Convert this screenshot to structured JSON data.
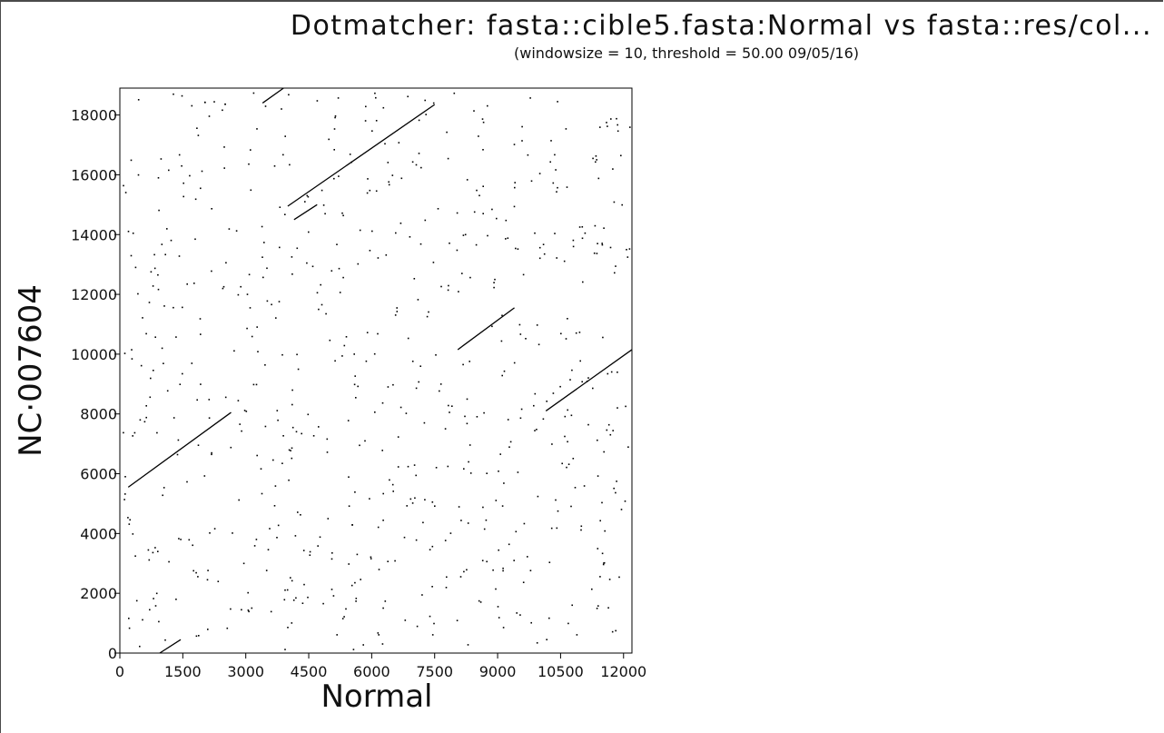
{
  "chart_data": {
    "type": "scatter",
    "title": "Dotmatcher: fasta::cible5.fasta:Normal vs fasta::res/col...",
    "subtitle": "(windowsize = 10, threshold = 50.00  09/05/16)",
    "xlabel": "Normal",
    "ylabel": "NC·007604",
    "xlim": [
      0,
      12200
    ],
    "ylim": [
      0,
      18900
    ],
    "x_ticks": [
      0,
      1500,
      3000,
      4500,
      6000,
      7500,
      9000,
      10500,
      12000
    ],
    "y_ticks": [
      0,
      2000,
      4000,
      6000,
      8000,
      10000,
      12000,
      14000,
      16000,
      18000
    ],
    "x_tick_labels": [
      "0",
      "1500",
      "3000",
      "4500",
      "6000",
      "7500",
      "9000",
      "10500",
      "12000"
    ],
    "y_tick_labels": [
      "0",
      "2000",
      "4000",
      "6000",
      "8000",
      "10000",
      "12000",
      "14000",
      "16000",
      "18000"
    ],
    "grid": false,
    "legend": "none",
    "colors": {
      "ink": "#000000",
      "background": "#ffffff",
      "frame": "#4a4a4a"
    },
    "series": [
      {
        "segments": [
          {
            "x": [
              200,
              2650
            ],
            "y": [
              5550,
              8050
            ]
          },
          {
            "x": [
              950,
              1450
            ],
            "y": [
              0,
              450
            ]
          },
          {
            "x": [
              4000,
              7500
            ],
            "y": [
              14950,
              18350
            ]
          },
          {
            "x": [
              4150,
              4700
            ],
            "y": [
              14500,
              15000
            ]
          },
          {
            "x": [
              3400,
              3900
            ],
            "y": [
              18400,
              18900
            ]
          },
          {
            "x": [
              8050,
              9400
            ],
            "y": [
              10150,
              11550
            ]
          },
          {
            "x": [
              10150,
              12200
            ],
            "y": [
              8100,
              10150
            ]
          }
        ]
      }
    ],
    "noise_dot_count": 700
  }
}
